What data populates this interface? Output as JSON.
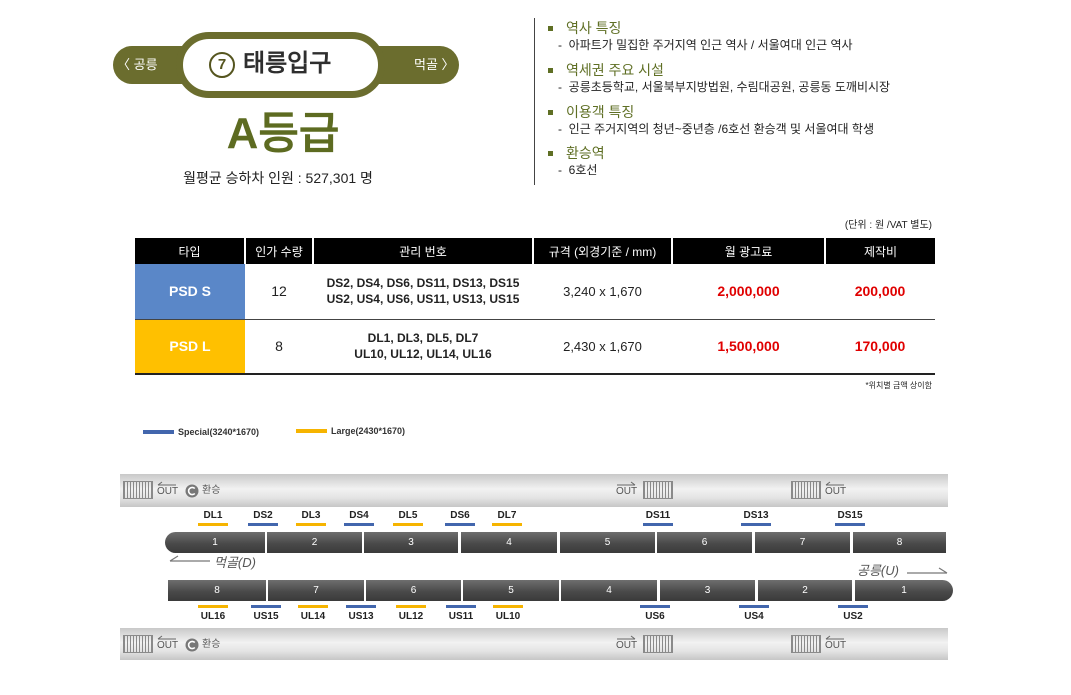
{
  "station": {
    "prev": "〈 공릉",
    "next": "먹골 〉",
    "line_number": "7",
    "name": "태릉입구"
  },
  "grade": "A등급",
  "monthly_riders": "월평균 승하차 인원 : 527,301 명",
  "features": [
    {
      "title": "역사 특징",
      "detail": "-  아파트가 밀집한 주거지역 인근 역사 / 서울여대 인근 역사"
    },
    {
      "title": "역세권 주요 시설",
      "detail": "-  공릉초등학교, 서울북부지방법원, 수림대공원, 공릉동 도깨비시장"
    },
    {
      "title": "이용객 특징",
      "detail": "-  인근 주거지역의 청년~중년층 /6호선 환승객 및 서울여대 학생"
    },
    {
      "title": "환승역",
      "detail": "-  6호선"
    }
  ],
  "table": {
    "unit_note": "(단위 : 원 /VAT 별도)",
    "headers": [
      "타입",
      "인가 수량",
      "관리 번호",
      "규격 (외경기준 / mm)",
      "월 광고료",
      "제작비"
    ],
    "rows": [
      {
        "type": "PSD S",
        "color": "#5a87c8",
        "quantity": "12",
        "ids": [
          "DS2, DS4, DS6, DS11, DS13, DS15",
          "US2, US4, US6, US11, US13, US15"
        ],
        "size": "3,240 x 1,670",
        "monthly_fee": "2,000,000",
        "production_cost": "200,000"
      },
      {
        "type": "PSD L",
        "color": "#ffc000",
        "quantity": "8",
        "ids": [
          "DL1, DL3, DL5, DL7",
          "UL10, UL12, UL14, UL16"
        ],
        "size": "2,430 x 1,670",
        "monthly_fee": "1,500,000",
        "production_cost": "170,000"
      }
    ],
    "footnote": "*위치별 금액 상이함"
  },
  "legend": [
    {
      "label": "Special(3240*1670)",
      "color": "#4266ad"
    },
    {
      "label": "Large(2430*1670)",
      "color": "#f6b400"
    }
  ],
  "platform": {
    "exit_label": "OUT",
    "transfer_label": "환승",
    "direction_down": "먹골(D)",
    "direction_up": "공릉(U)",
    "upper_cars": [
      "1",
      "2",
      "3",
      "4",
      "5",
      "6",
      "7",
      "8"
    ],
    "lower_cars": [
      "8",
      "7",
      "6",
      "5",
      "4",
      "3",
      "2",
      "1"
    ],
    "upper_markers": [
      {
        "label": "DL1",
        "color": "#f6b400"
      },
      {
        "label": "DS2",
        "color": "#4266ad"
      },
      {
        "label": "DL3",
        "color": "#f6b400"
      },
      {
        "label": "DS4",
        "color": "#4266ad"
      },
      {
        "label": "DL5",
        "color": "#f6b400"
      },
      {
        "label": "DS6",
        "color": "#4266ad"
      },
      {
        "label": "DL7",
        "color": "#f6b400"
      },
      {
        "label": "DS11",
        "color": "#4266ad"
      },
      {
        "label": "DS13",
        "color": "#4266ad"
      },
      {
        "label": "DS15",
        "color": "#4266ad"
      }
    ],
    "lower_markers": [
      {
        "label": "UL16",
        "color": "#f6b400"
      },
      {
        "label": "US15",
        "color": "#4266ad"
      },
      {
        "label": "UL14",
        "color": "#f6b400"
      },
      {
        "label": "US13",
        "color": "#4266ad"
      },
      {
        "label": "UL12",
        "color": "#f6b400"
      },
      {
        "label": "US11",
        "color": "#4266ad"
      },
      {
        "label": "UL10",
        "color": "#f6b400"
      },
      {
        "label": "US6",
        "color": "#4266ad"
      },
      {
        "label": "US4",
        "color": "#4266ad"
      },
      {
        "label": "US2",
        "color": "#4266ad"
      }
    ]
  },
  "icons": {
    "line": "line-7-badge-icon",
    "bullet": "square-bullet-icon",
    "stairs": "stairs-icon",
    "transfer": "transfer-icon",
    "exit_arrow": "arrow-icon"
  },
  "colors": {
    "accent": "#6b6d2e",
    "grade_text": "#5d6b21",
    "price": "#e00000",
    "table_header": "#000000"
  }
}
